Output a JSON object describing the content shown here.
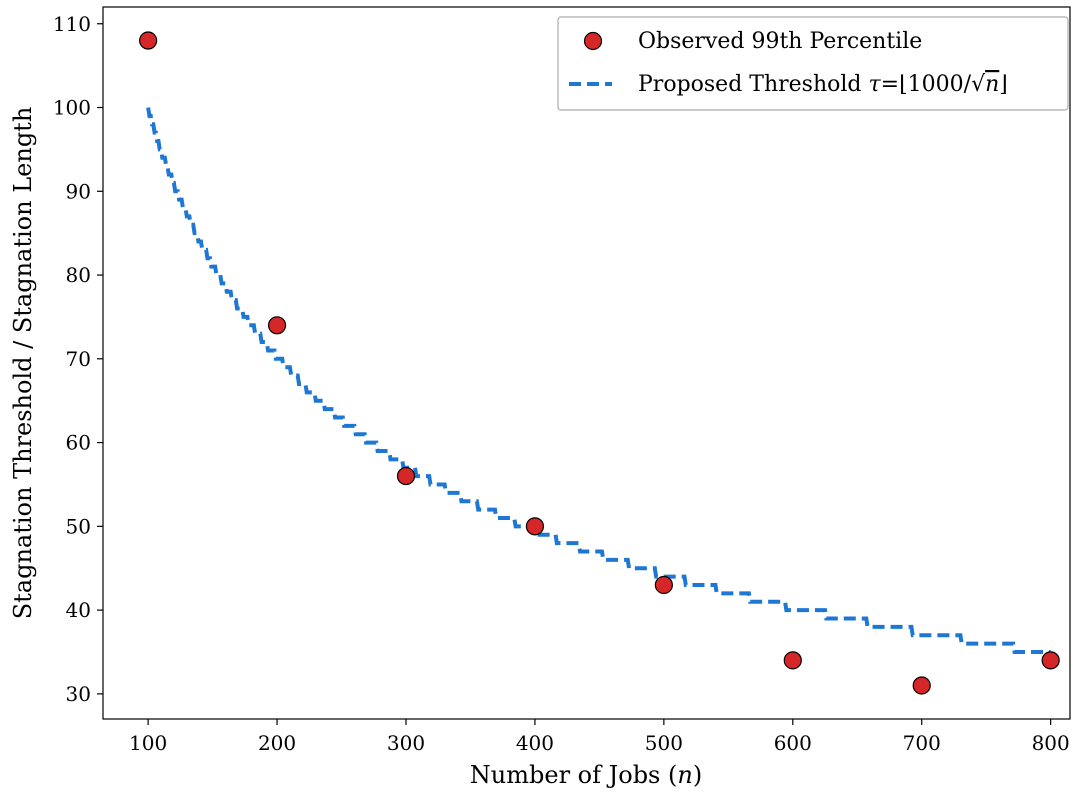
{
  "chart_data": {
    "type": "scatter",
    "title": "",
    "xlabel": "Number of Jobs (",
    "xlabel_var": "n",
    "xlabel_close": ")",
    "ylabel": "Stagnation Threshold / Stagnation Length",
    "xlim": [
      65,
      815
    ],
    "ylim": [
      27,
      112
    ],
    "xticks": [
      100,
      200,
      300,
      400,
      500,
      600,
      700,
      800
    ],
    "yticks": [
      30,
      40,
      50,
      60,
      70,
      80,
      90,
      100,
      110
    ],
    "grid": false,
    "legend_position": "top-right",
    "series": [
      {
        "name": "Observed 99th Percentile",
        "kind": "scatter",
        "color": "#d62728",
        "x": [
          100,
          200,
          300,
          400,
          500,
          600,
          700,
          800
        ],
        "y": [
          108,
          74,
          56,
          50,
          43,
          34,
          31,
          34
        ]
      },
      {
        "name": "Proposed Threshold",
        "formula_lhs": "τ",
        "formula_eq": "=",
        "formula_num": "⌊1000/",
        "formula_sqrt_var": "n",
        "formula_close": "⌋",
        "kind": "line",
        "style": "dashed",
        "color": "#1f77d4",
        "function": "floor(1000/sqrt(n))",
        "x_range": [
          100,
          800
        ]
      }
    ]
  }
}
